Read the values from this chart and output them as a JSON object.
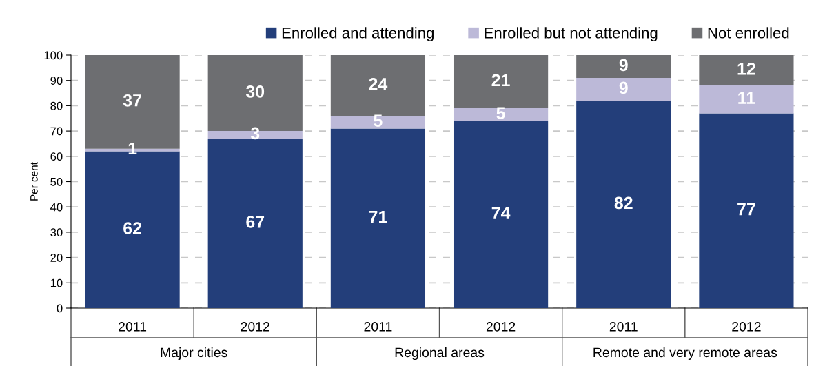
{
  "chart_data": {
    "type": "bar",
    "stacked": true,
    "ylabel": "Per cent",
    "categories": [
      "2011",
      "2012",
      "2011",
      "2012",
      "2011",
      "2012"
    ],
    "annotations": [
      "Major cities",
      "Regional areas",
      "Remote and very remote areas"
    ],
    "series": [
      {
        "name": "Enrolled and attending",
        "color": "#233e7a",
        "values": [
          62,
          67,
          71,
          74,
          82,
          77
        ]
      },
      {
        "name": "Enrolled but not attending",
        "color": "#bcb9d8",
        "values": [
          1,
          3,
          5,
          5,
          9,
          11
        ]
      },
      {
        "name": "Not enrolled",
        "color": "#6d6e71",
        "values": [
          37,
          30,
          24,
          21,
          9,
          12
        ]
      }
    ],
    "ylim": [
      0,
      100
    ],
    "yticks": [
      0,
      10,
      20,
      30,
      40,
      50,
      60,
      70,
      80,
      90,
      100
    ],
    "grid": "y",
    "legend": "top",
    "data_labels": true
  }
}
